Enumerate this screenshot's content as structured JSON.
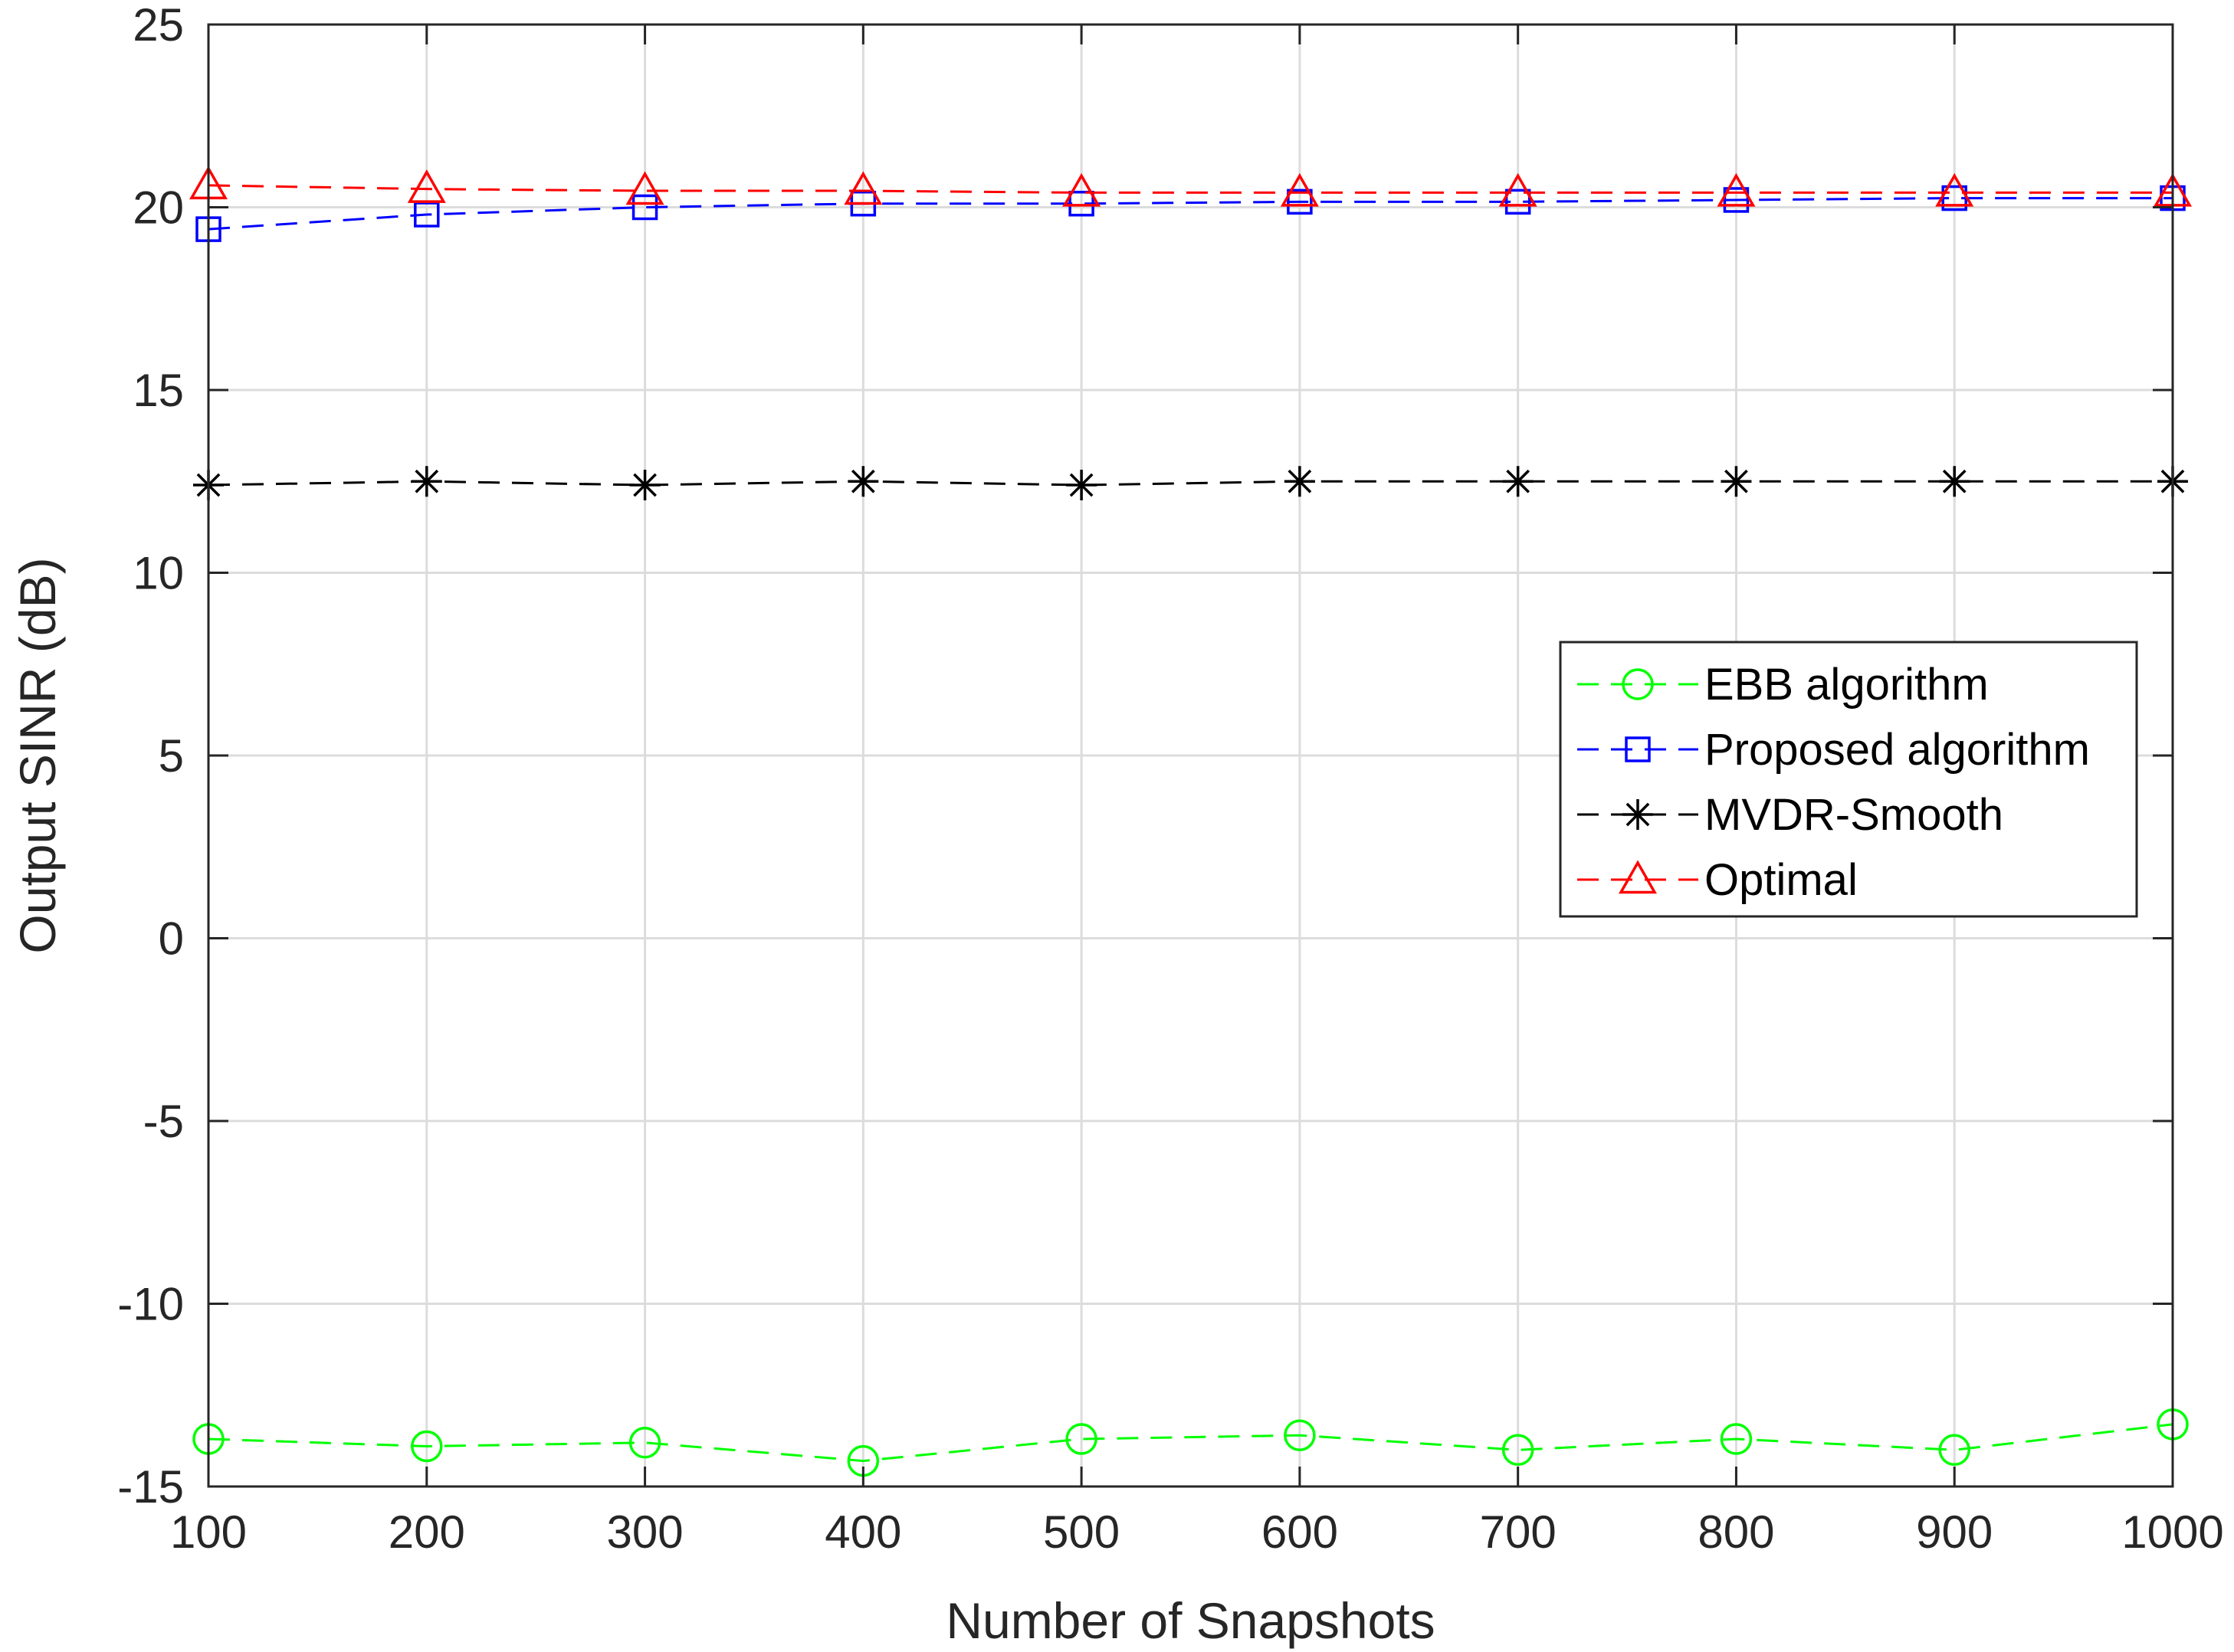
{
  "chart_data": {
    "type": "line",
    "xlabel": "Number of Snapshots",
    "ylabel": "Output SINR (dB)",
    "xlim": [
      100,
      1000
    ],
    "ylim": [
      -15,
      25
    ],
    "xticks": [
      100,
      200,
      300,
      400,
      500,
      600,
      700,
      800,
      900,
      1000
    ],
    "yticks": [
      -15,
      -10,
      -5,
      0,
      5,
      10,
      15,
      20,
      25
    ],
    "xtick_labels": [
      "100",
      "200",
      "300",
      "400",
      "500",
      "600",
      "700",
      "800",
      "900",
      "1000"
    ],
    "ytick_labels": [
      "-15",
      "-10",
      "-5",
      "0",
      "5",
      "10",
      "15",
      "20",
      "25"
    ],
    "grid": true,
    "legend_position": "right",
    "x": [
      100,
      200,
      300,
      400,
      500,
      600,
      700,
      800,
      900,
      1000
    ],
    "series": [
      {
        "name": "EBB algorithm",
        "color": "#00ff00",
        "marker": "circle",
        "values": [
          -13.7,
          -13.9,
          -13.8,
          -14.3,
          -13.7,
          -13.6,
          -14.0,
          -13.7,
          -14.0,
          -13.3
        ]
      },
      {
        "name": "Proposed algorithm",
        "color": "#0000ff",
        "marker": "square",
        "values": [
          19.4,
          19.8,
          20.0,
          20.1,
          20.1,
          20.15,
          20.15,
          20.2,
          20.25,
          20.25
        ]
      },
      {
        "name": "MVDR-Smooth",
        "color": "#000000",
        "marker": "asterisk",
        "values": [
          12.4,
          12.5,
          12.4,
          12.5,
          12.4,
          12.5,
          12.5,
          12.5,
          12.5,
          12.5
        ]
      },
      {
        "name": "Optimal",
        "color": "#ff0000",
        "marker": "triangle",
        "values": [
          20.6,
          20.5,
          20.45,
          20.45,
          20.4,
          20.4,
          20.4,
          20.4,
          20.4,
          20.4
        ]
      }
    ]
  }
}
